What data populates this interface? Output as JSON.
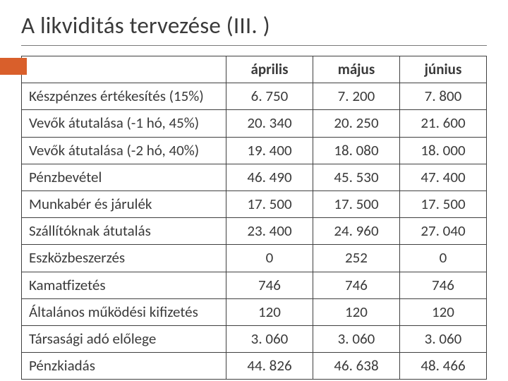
{
  "slide": {
    "title": "A likviditás tervezése (III. )",
    "accent_color": "#d95f2b"
  },
  "table": {
    "columns": [
      "április",
      "május",
      "június"
    ],
    "rows": [
      {
        "label": "Készpénzes értékesítés (15%)",
        "cells": [
          "6. 750",
          "7. 200",
          "7. 800"
        ]
      },
      {
        "label": "Vevők átutalása (-1 hó, 45%)",
        "cells": [
          "20. 340",
          "20. 250",
          "21. 600"
        ]
      },
      {
        "label": "Vevők átutalása (-2 hó, 40%)",
        "cells": [
          "19. 400",
          "18. 080",
          "18. 000"
        ]
      },
      {
        "label": "Pénzbevétel",
        "cells": [
          "46. 490",
          "45. 530",
          "47. 400"
        ]
      },
      {
        "label": "Munkabér és járulék",
        "cells": [
          "17. 500",
          "17. 500",
          "17. 500"
        ]
      },
      {
        "label": "Szállítóknak átutalás",
        "cells": [
          "23. 400",
          "24. 960",
          "27. 040"
        ]
      },
      {
        "label": "Eszközbeszerzés",
        "cells": [
          "0",
          "252",
          "0"
        ]
      },
      {
        "label": "Kamatfizetés",
        "cells": [
          "746",
          "746",
          "746"
        ]
      },
      {
        "label": "Általános működési kifizetés",
        "cells": [
          "120",
          "120",
          "120"
        ]
      },
      {
        "label": "Társasági adó előlege",
        "cells": [
          "3. 060",
          "3. 060",
          "3. 060"
        ]
      },
      {
        "label": "Pénzkiadás",
        "cells": [
          "44. 826",
          "46. 638",
          "48. 466"
        ]
      }
    ]
  }
}
